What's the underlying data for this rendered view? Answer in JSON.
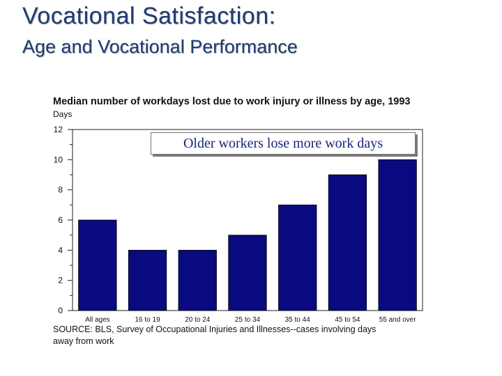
{
  "slide": {
    "title": "Vocational Satisfaction:",
    "subtitle": "Age and Vocational Performance"
  },
  "chart_data": {
    "type": "bar",
    "title": "Median number of workdays lost due to work injury or illness by age, 1993",
    "ylabel": "Days",
    "xlabel": "",
    "categories": [
      "All ages",
      "16 to 19",
      "20 to 24",
      "25 to 34",
      "35 to 44",
      "45 to 54",
      "55 and over"
    ],
    "values": [
      6,
      4,
      4,
      5,
      7,
      9,
      10
    ],
    "ylim": [
      0,
      12
    ],
    "yticks": [
      "0",
      "2",
      "4",
      "6",
      "8",
      "10",
      "12"
    ],
    "bar_color": "#0a0a80",
    "annotation": "Older workers lose more work days",
    "source": "SOURCE: BLS, Survey of Occupational Injuries and Illnesses--cases involving days away from work",
    "grid": false
  }
}
